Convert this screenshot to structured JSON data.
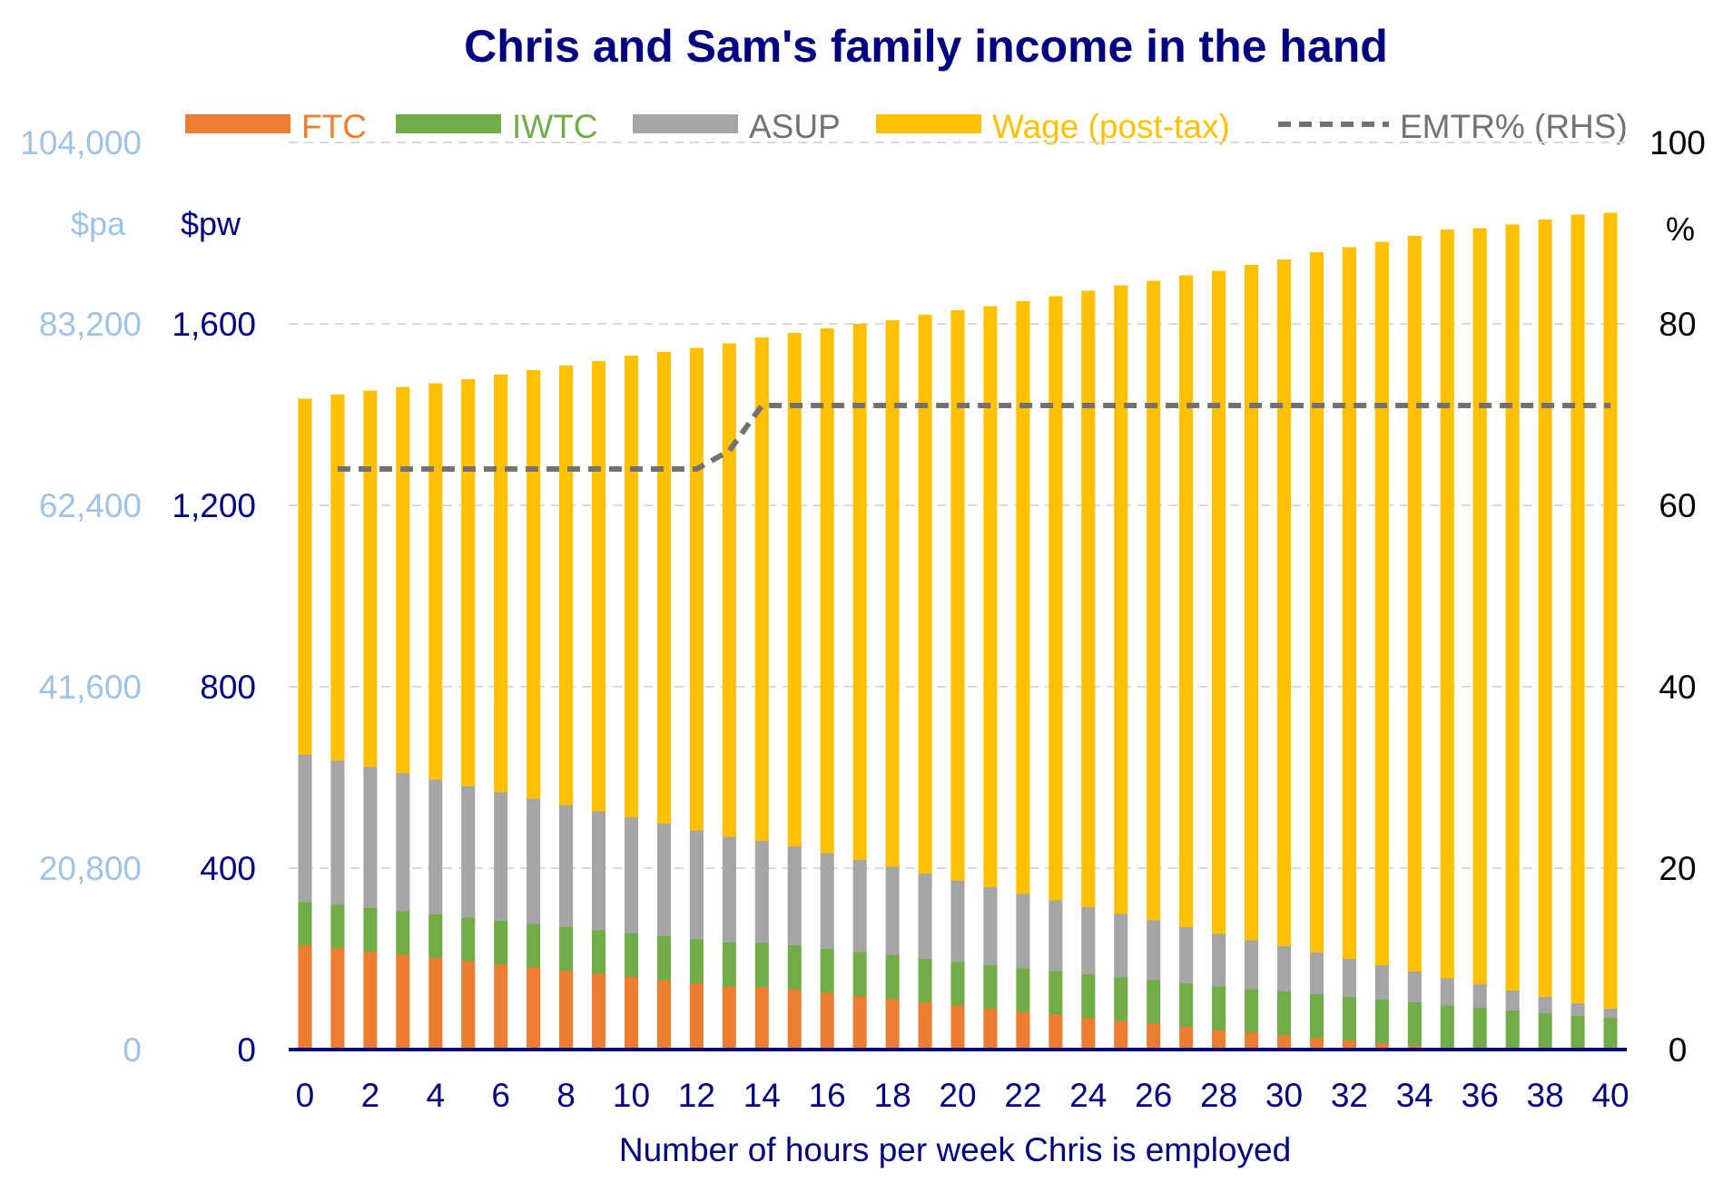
{
  "chart_data": {
    "type": "bar",
    "title": "Chris and Sam's family income in the hand",
    "xlabel": "Number of hours per week Chris is employed",
    "y_units_pa": "$pa",
    "y_units_pw": "$pw",
    "y2_units": "%",
    "ylim": [
      0,
      2000
    ],
    "y2lim": [
      0,
      100
    ],
    "grid": "horizontal-dashed",
    "legend_position": "top",
    "x": [
      0,
      1,
      2,
      3,
      4,
      5,
      6,
      7,
      8,
      9,
      10,
      11,
      12,
      13,
      14,
      15,
      16,
      17,
      18,
      19,
      20,
      21,
      22,
      23,
      24,
      25,
      26,
      27,
      28,
      29,
      30,
      31,
      32,
      33,
      34,
      35,
      36,
      37,
      38,
      39,
      40
    ],
    "x_tick_labels": [
      "0",
      "2",
      "4",
      "6",
      "8",
      "10",
      "12",
      "14",
      "16",
      "18",
      "20",
      "22",
      "24",
      "26",
      "28",
      "30",
      "32",
      "34",
      "36",
      "38",
      "40"
    ],
    "y_ticks_pw": [
      "0",
      "400",
      "800",
      "1,200",
      "1,600"
    ],
    "y_ticks_pa": [
      "0",
      "20,800",
      "41,600",
      "62,400",
      "83,200",
      "104,000"
    ],
    "y2_ticks": [
      "0",
      "20",
      "40",
      "60",
      "80",
      "100"
    ],
    "series": [
      {
        "name": "FTC",
        "color": "#ED7D31",
        "values": [
          230,
          223,
          216,
          209,
          202,
          195,
          188,
          181,
          174,
          167,
          160,
          153,
          146,
          139,
          138,
          133,
          125,
          118,
          111,
          104,
          97,
          90,
          83,
          77,
          70,
          63,
          57,
          50,
          43,
          37,
          32,
          26,
          20,
          14,
          8,
          1,
          0,
          0,
          0,
          0,
          0
        ]
      },
      {
        "name": "IWTC",
        "color": "#70AD47",
        "values": [
          95,
          96,
          96,
          96,
          96,
          96,
          96,
          96,
          96,
          96,
          97,
          97,
          97,
          97,
          97,
          97,
          97,
          97,
          97,
          96,
          96,
          96,
          96,
          96,
          96,
          96,
          96,
          96,
          96,
          96,
          96,
          96,
          96,
          96,
          96,
          96,
          92,
          86,
          80,
          74,
          70
        ]
      },
      {
        "name": "ASUP",
        "color": "#A5A5A5",
        "values": [
          325,
          318,
          311,
          304,
          297,
          290,
          283,
          276,
          269,
          262,
          255,
          248,
          240,
          233,
          225,
          218,
          211,
          203,
          195,
          188,
          180,
          172,
          164,
          156,
          148,
          140,
          132,
          124,
          116,
          108,
          100,
          92,
          84,
          76,
          68,
          60,
          52,
          44,
          36,
          28,
          20
        ]
      },
      {
        "name": "Wage (post-tax)",
        "color": "#FFC000",
        "values": [
          785,
          807,
          830,
          852,
          874,
          897,
          921,
          945,
          969,
          993,
          1018,
          1040,
          1064,
          1088,
          1110,
          1132,
          1157,
          1182,
          1205,
          1232,
          1257,
          1281,
          1307,
          1332,
          1359,
          1386,
          1410,
          1437,
          1462,
          1489,
          1514,
          1544,
          1569,
          1595,
          1622,
          1651,
          1667,
          1689,
          1714,
          1739,
          1755
        ]
      }
    ],
    "line_series": {
      "name": "EMTR% (RHS)",
      "color": "#767171",
      "axis": "right",
      "x": [
        1,
        12,
        13,
        14,
        40
      ],
      "values": [
        64,
        64,
        66,
        71,
        71
      ]
    }
  }
}
